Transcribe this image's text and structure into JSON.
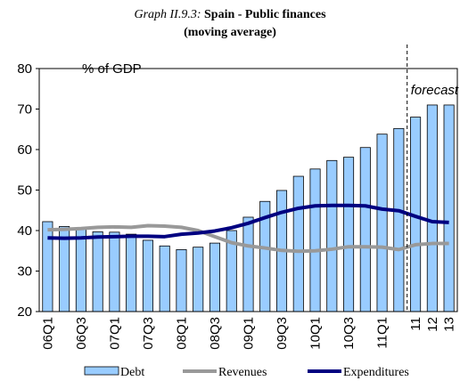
{
  "chart_data": {
    "type": "bar-line",
    "title": {
      "label": "Graph II.9.3:",
      "text": "Spain - Public finances"
    },
    "subtitle": "(moving average)",
    "y_label": "% of GDP",
    "annotation": "forecast",
    "forecast_start": "11",
    "categories": [
      "06Q1",
      null,
      "06Q3",
      null,
      "07Q1",
      null,
      "07Q3",
      null,
      "08Q1",
      null,
      "08Q3",
      null,
      "09Q1",
      null,
      "09Q3",
      null,
      "10Q1",
      null,
      "10Q3",
      null,
      "11Q1",
      null,
      "11",
      "12",
      "13"
    ],
    "series": [
      {
        "name": "Debt",
        "type": "bar",
        "color": "#99ccff",
        "values": [
          42.2,
          41,
          40.3,
          39.7,
          39.6,
          39.1,
          37.6,
          36.2,
          35.3,
          35.9,
          36.9,
          40,
          43.3,
          47.2,
          49.9,
          53.4,
          55.2,
          57.3,
          58.1,
          60.5,
          63.8,
          65.2,
          68,
          71,
          71
        ]
      },
      {
        "name": "Revenues",
        "type": "line",
        "color": "#999999",
        "values": [
          40.2,
          40.3,
          40.5,
          40.8,
          40.9,
          40.8,
          41.2,
          41.1,
          40.8,
          40,
          38.5,
          37,
          36.2,
          35.7,
          35.1,
          34.9,
          35,
          35.4,
          36,
          36,
          35.9,
          35.3,
          36.5,
          36.8,
          36.8
        ]
      },
      {
        "name": "Expenditures",
        "type": "line",
        "color": "#000080",
        "values": [
          38.2,
          38.1,
          38.2,
          38.4,
          38.5,
          38.6,
          38.6,
          38.5,
          39.1,
          39.4,
          39.9,
          40.7,
          41.8,
          43.2,
          44.5,
          45.5,
          46.1,
          46.2,
          46.2,
          46.1,
          45.3,
          44.9,
          43.5,
          42.2,
          42
        ]
      }
    ],
    "ylim": [
      20,
      80
    ],
    "yticks": [
      20,
      30,
      40,
      50,
      60,
      70,
      80
    ]
  }
}
